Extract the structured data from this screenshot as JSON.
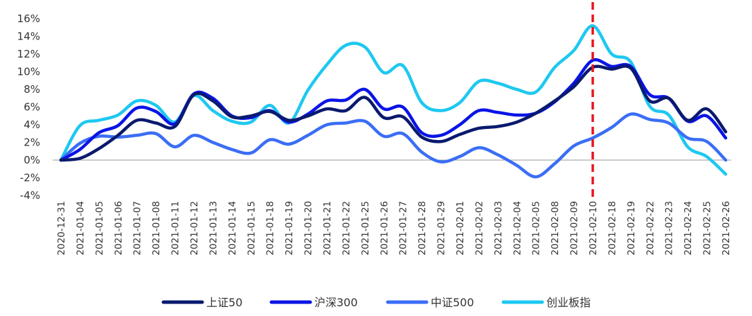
{
  "chart_data": {
    "type": "line",
    "categories": [
      "2020-12-31",
      "2021-01-04",
      "2021-01-05",
      "2021-01-06",
      "2021-01-07",
      "2021-01-08",
      "2021-01-11",
      "2021-01-12",
      "2021-01-13",
      "2021-01-14",
      "2021-01-15",
      "2021-01-18",
      "2021-01-19",
      "2021-01-20",
      "2021-01-21",
      "2021-01-22",
      "2021-01-25",
      "2021-01-26",
      "2021-01-27",
      "2021-01-28",
      "2021-01-29",
      "2021-02-01",
      "2021-02-02",
      "2021-02-03",
      "2021-02-04",
      "2021-02-05",
      "2021-02-08",
      "2021-02-09",
      "2021-02-10",
      "2021-02-18",
      "2021-02-19",
      "2021-02-22",
      "2021-02-23",
      "2021-02-24",
      "2021-02-25",
      "2021-02-26"
    ],
    "series": [
      {
        "name": "上证50",
        "color": "#0a1a6e",
        "values": [
          0.0,
          0.2,
          1.3,
          2.8,
          4.5,
          4.2,
          3.8,
          7.4,
          6.7,
          4.9,
          5.0,
          5.5,
          4.5,
          5.0,
          5.8,
          5.6,
          7.1,
          4.8,
          4.9,
          2.6,
          2.1,
          2.9,
          3.6,
          3.8,
          4.3,
          5.3,
          6.7,
          8.3,
          10.5,
          10.3,
          10.4,
          6.7,
          7.0,
          4.5,
          5.8,
          3.2
        ]
      },
      {
        "name": "沪深300",
        "color": "#0a14e6",
        "values": [
          0.0,
          1.2,
          3.1,
          3.9,
          5.9,
          5.5,
          4.1,
          7.5,
          7.0,
          5.0,
          4.8,
          5.6,
          4.3,
          5.2,
          6.7,
          6.8,
          8.0,
          5.8,
          6.0,
          3.1,
          2.8,
          4.0,
          5.6,
          5.4,
          5.1,
          5.3,
          6.6,
          8.7,
          11.3,
          10.6,
          10.6,
          7.4,
          7.0,
          4.4,
          5.0,
          2.5
        ]
      },
      {
        "name": "中证500",
        "color": "#3b6ef5",
        "values": [
          0.0,
          1.9,
          2.7,
          2.6,
          2.8,
          3.0,
          1.5,
          2.8,
          2.0,
          1.2,
          0.8,
          2.3,
          1.8,
          2.8,
          4.0,
          4.2,
          4.4,
          2.7,
          3.0,
          0.9,
          -0.2,
          0.4,
          1.4,
          0.6,
          -0.6,
          -1.9,
          -0.4,
          1.6,
          2.5,
          3.7,
          5.2,
          4.6,
          4.2,
          2.5,
          2.1,
          0.0
        ]
      },
      {
        "name": "创业板指",
        "color": "#1ec8f0",
        "values": [
          0.0,
          3.9,
          4.5,
          5.1,
          6.7,
          6.2,
          4.3,
          7.3,
          5.6,
          4.4,
          4.3,
          6.2,
          4.2,
          7.9,
          10.8,
          13.0,
          12.8,
          9.9,
          10.7,
          6.5,
          5.6,
          6.5,
          8.9,
          8.7,
          8.0,
          7.7,
          10.5,
          12.4,
          15.2,
          12.0,
          11.1,
          6.1,
          5.1,
          1.5,
          0.4,
          -1.6
        ]
      }
    ],
    "y_ticks": [
      "-4%",
      "-2%",
      "0%",
      "2%",
      "4%",
      "6%",
      "8%",
      "10%",
      "12%",
      "14%",
      "16%"
    ],
    "ylim": [
      -4,
      16
    ],
    "marker_category": "2021-02-10",
    "marker_color": "#e8131b",
    "legend_position": "bottom-center",
    "grid": false
  }
}
